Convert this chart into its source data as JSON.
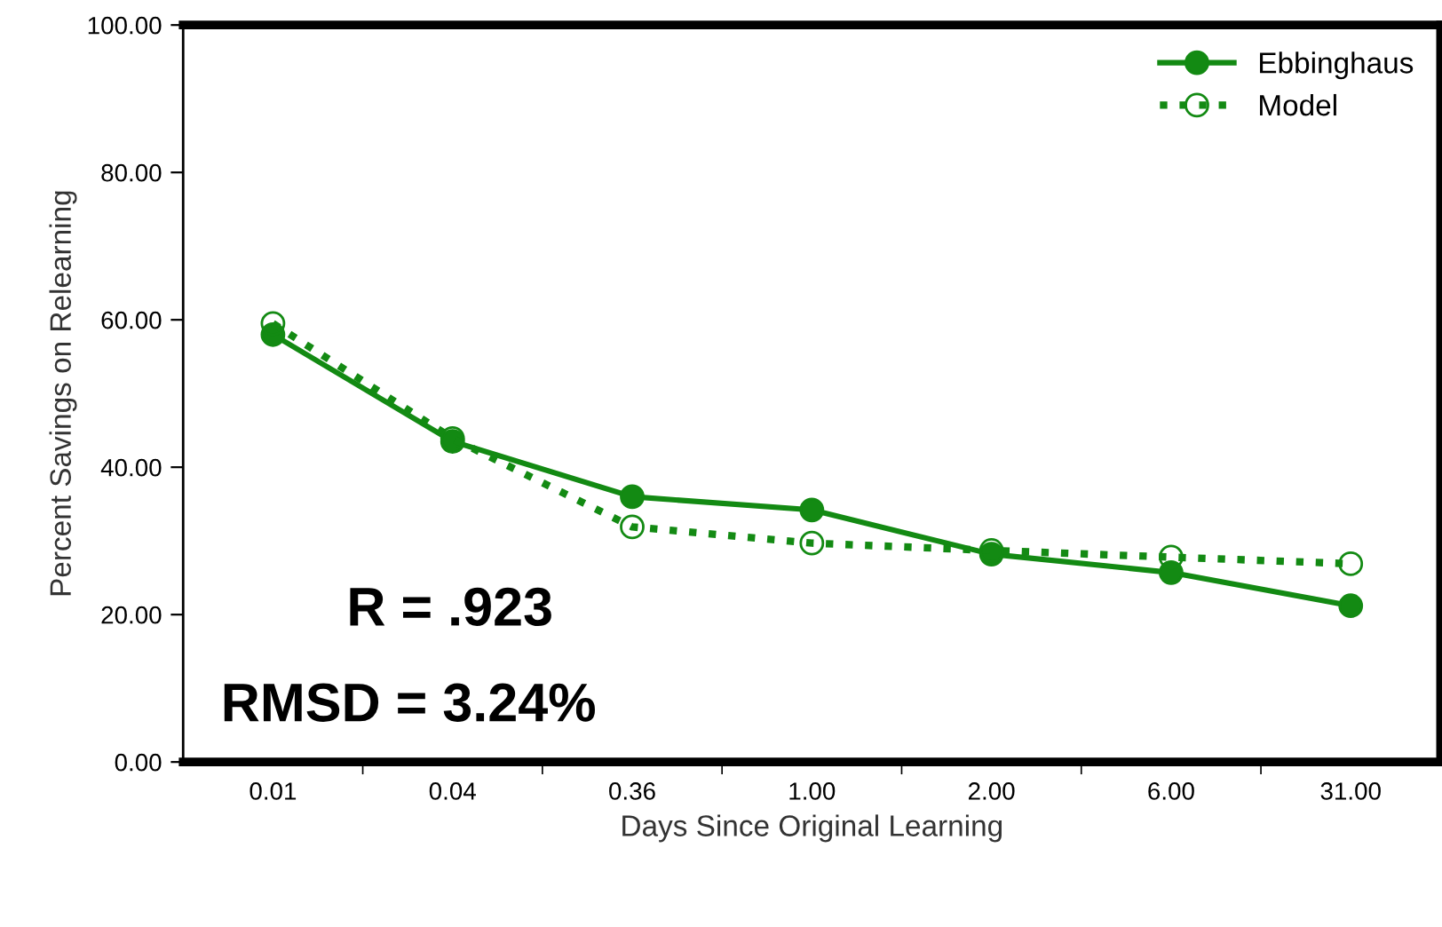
{
  "chart_data": {
    "type": "line",
    "xlabel": "Days Since Original Learning",
    "ylabel": "Percent Savings on Relearning",
    "categories": [
      "0.01",
      "0.04",
      "0.36",
      "1.00",
      "2.00",
      "6.00",
      "31.00"
    ],
    "series": [
      {
        "name": "Ebbinghaus",
        "color": "#138a13",
        "marker": "circle",
        "line_style": "solid",
        "values": [
          58.0,
          43.5,
          36.0,
          34.2,
          28.2,
          25.7,
          21.2
        ]
      },
      {
        "name": "Model",
        "color": "#138a13",
        "marker": "circle",
        "line_style": "dotted",
        "values": [
          59.5,
          43.9,
          31.9,
          29.7,
          28.7,
          27.8,
          26.9
        ]
      }
    ],
    "ylim": [
      0,
      100
    ],
    "yticks": [
      {
        "value": 0,
        "label": "0.00"
      },
      {
        "value": 20,
        "label": "20.00"
      },
      {
        "value": 40,
        "label": "40.00"
      },
      {
        "value": 60,
        "label": "60.00"
      },
      {
        "value": 80,
        "label": "80.00"
      },
      {
        "value": 100,
        "label": "100.00"
      }
    ],
    "annotations": [
      "R = .923",
      "RMSD = 3.24%"
    ],
    "grid": false,
    "legend": "top right"
  }
}
